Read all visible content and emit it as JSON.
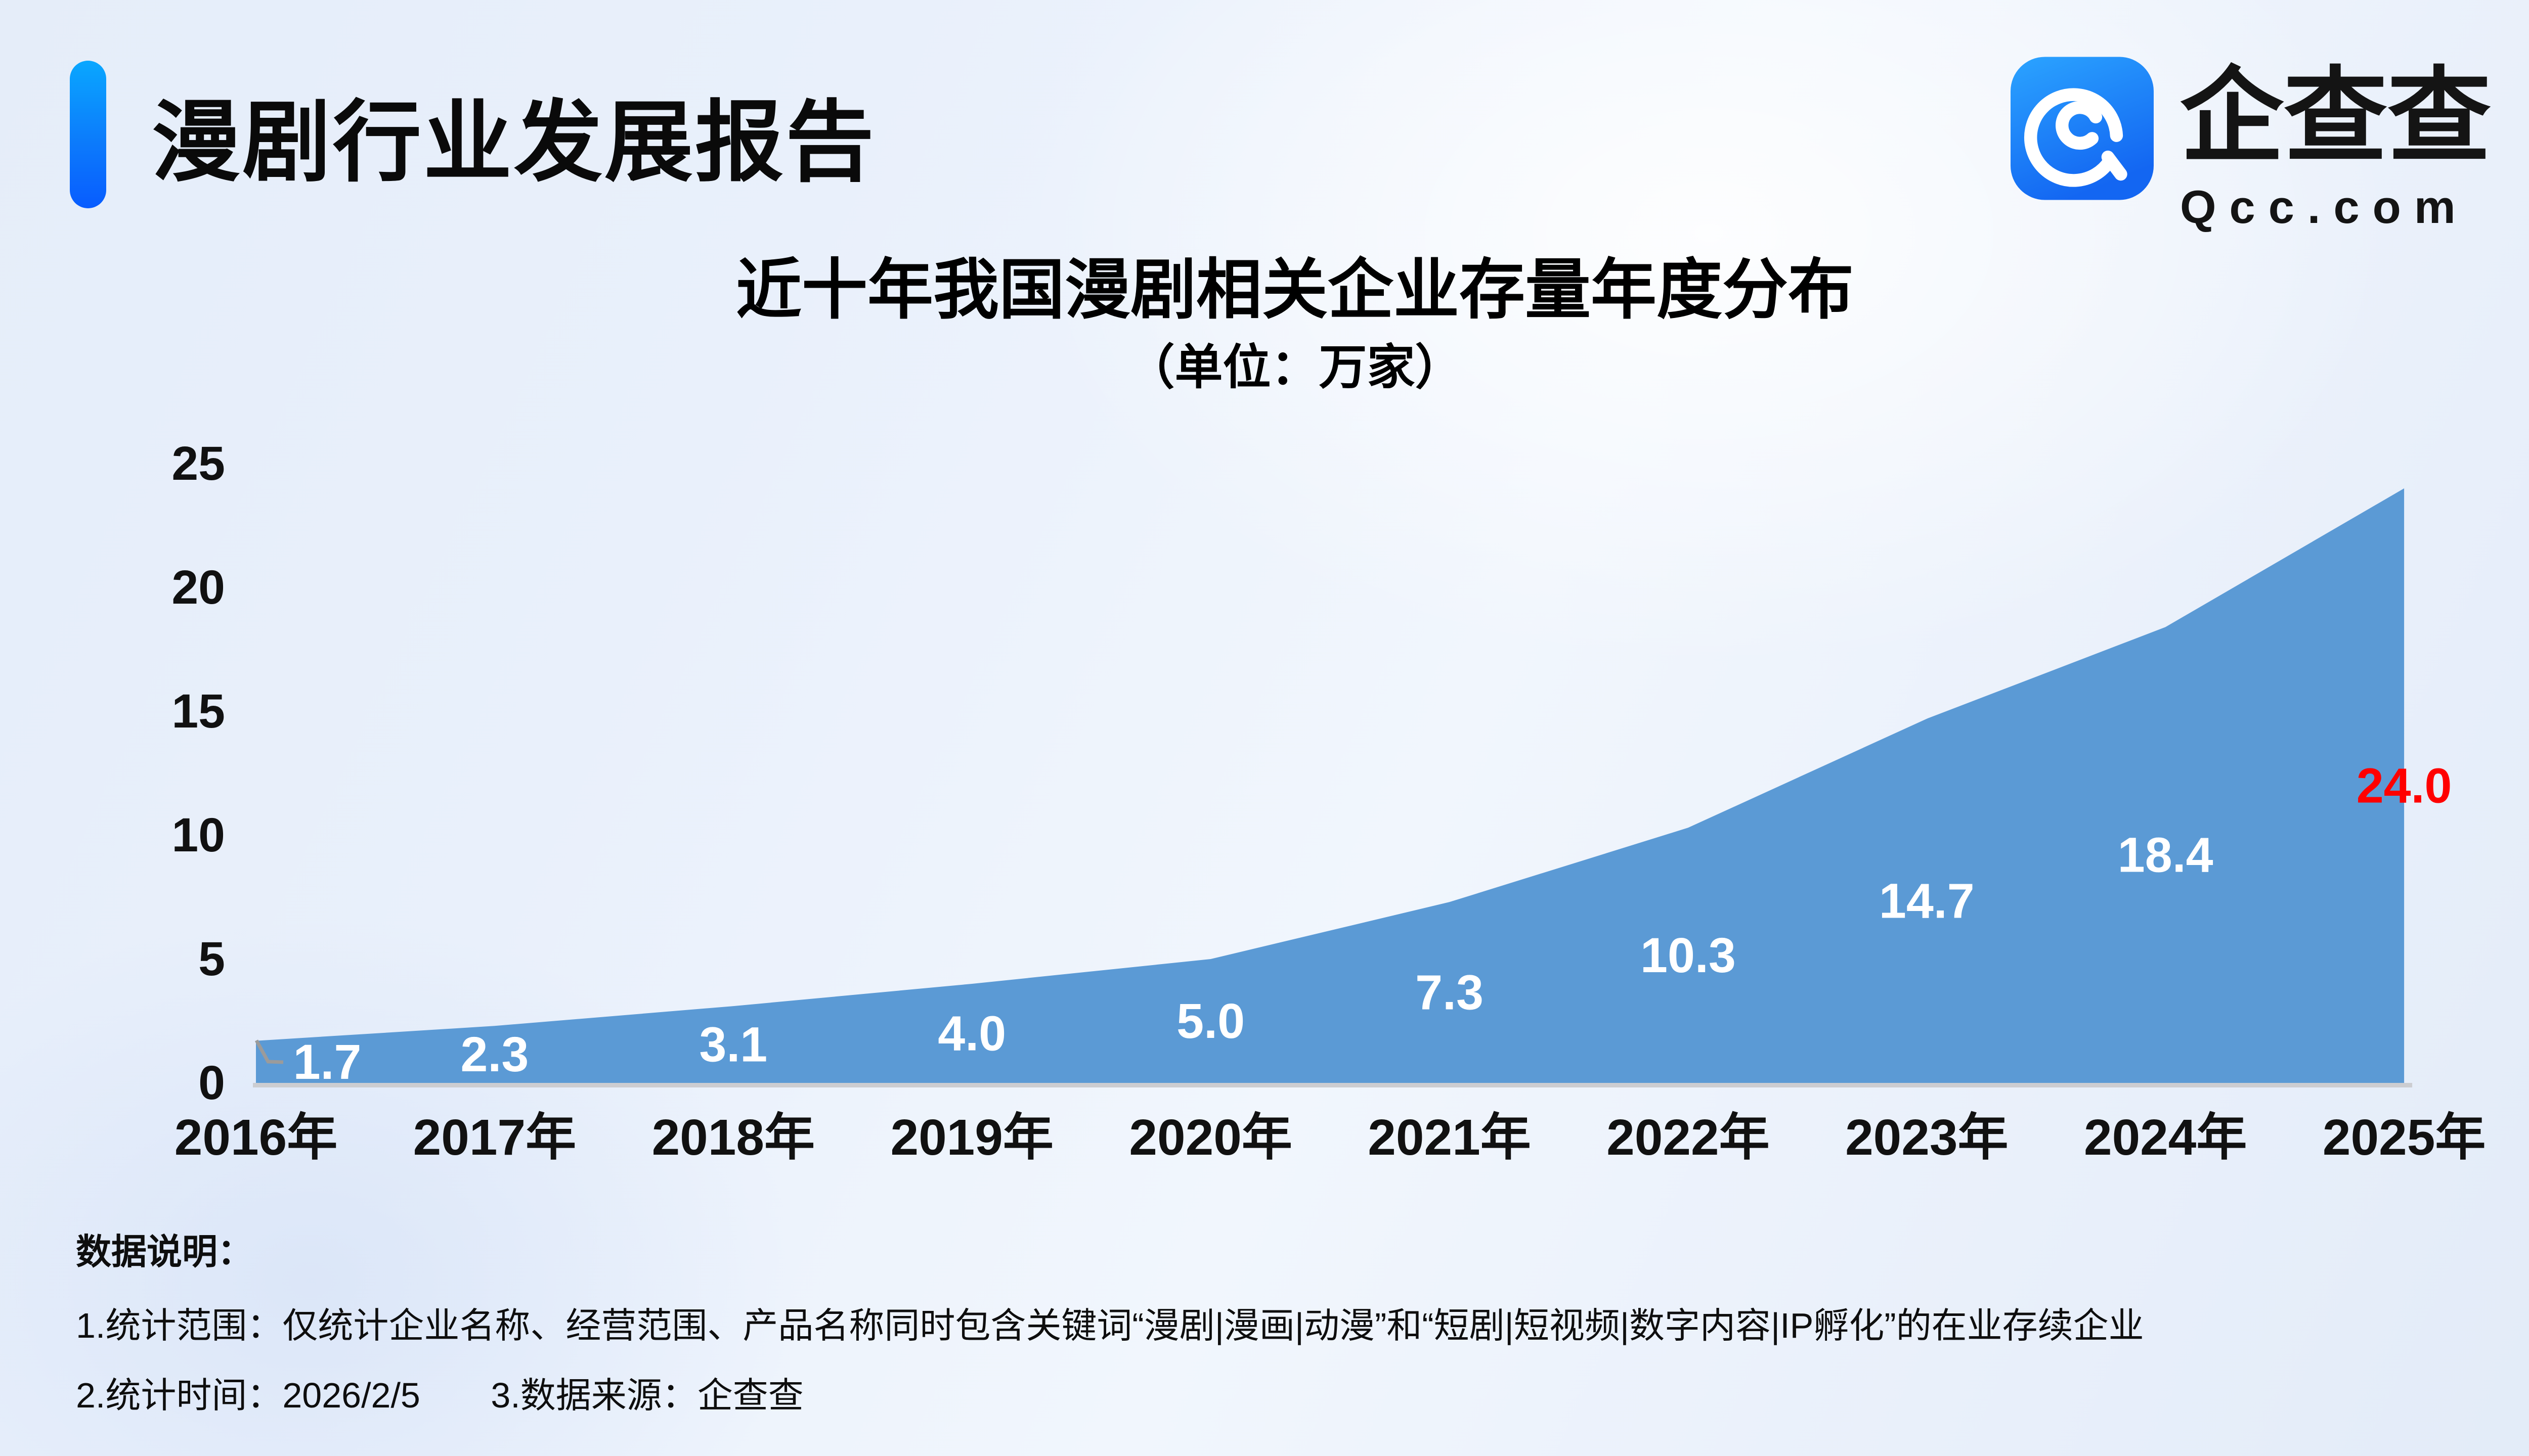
{
  "header": {
    "title": "漫剧行业发展报告"
  },
  "logo": {
    "name": "企查查",
    "domain": "Qcc.com",
    "icon": "qcc-logo-icon",
    "icon_gradient_top": "#2ba4ff",
    "icon_gradient_bottom": "#1366f2"
  },
  "chart": {
    "title": "近十年我国漫剧相关企业存量年度分布",
    "subtitle": "（单位：万家）"
  },
  "chart_data": {
    "type": "area",
    "title": "近十年我国漫剧相关企业存量年度分布",
    "unit_label": "（单位：万家）",
    "categories": [
      "2016年",
      "2017年",
      "2018年",
      "2019年",
      "2020年",
      "2021年",
      "2022年",
      "2023年",
      "2024年",
      "2025年"
    ],
    "values": [
      1.7,
      2.3,
      3.1,
      4.0,
      5.0,
      7.3,
      10.3,
      14.7,
      18.4,
      24.0
    ],
    "labels": [
      "1.7",
      "2.3",
      "3.1",
      "4.0",
      "5.0",
      "7.3",
      "10.3",
      "14.7",
      "18.4",
      "24.0"
    ],
    "ylim": [
      0,
      25
    ],
    "yticks": [
      0,
      5,
      10,
      15,
      20,
      25
    ],
    "grid": false,
    "legend": "none",
    "area_color": "#5b9ad5",
    "value_label_color": "#ffffff",
    "last_value_label_color": "#ff0000",
    "axis_line_color": "#cccdd1",
    "leader_line_color": "#9b9b9b",
    "tick_label_color": "#111111"
  },
  "footer": {
    "heading": "数据说明：",
    "line1": "1.统计范围：仅统计企业名称、经营范围、产品名称同时包含关键词“漫剧|漫画|动漫”和“短剧|短视频|数字内容|IP孵化”的在业存续企业",
    "line2_a": "2.统计时间：2026/2/5",
    "line2_b": "3.数据来源：企查查"
  }
}
